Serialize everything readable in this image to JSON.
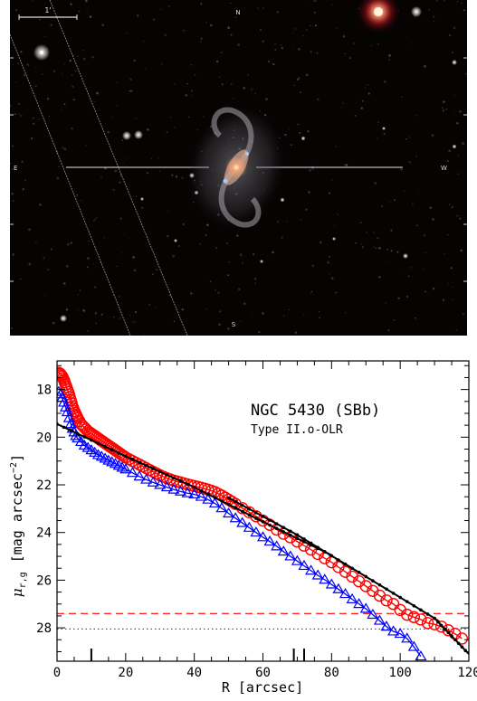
{
  "image": {
    "scale_bar_label": "1'",
    "compass": {
      "north": "N",
      "south": "S",
      "east": "E",
      "west": "W"
    }
  },
  "chart_data": {
    "type": "scatter",
    "title": "NGC 5430 (SBb)",
    "subtitle": "Type II.o-OLR",
    "xlabel": "R [arcsec]",
    "ylabel": "μr,g [mag arcsec−2]",
    "ylabel_parts": {
      "mu": "μ",
      "sub": "r,g",
      "unit": "[mag arcsec",
      "exp": "−2",
      "close": "]"
    },
    "xlim": [
      0,
      120
    ],
    "ylim": [
      29.4,
      16.8
    ],
    "y_inverted": true,
    "xticks": [
      0,
      20,
      40,
      60,
      80,
      100,
      120
    ],
    "yticks": [
      18,
      20,
      22,
      24,
      26,
      28
    ],
    "break_markers_x": [
      10,
      69,
      72
    ],
    "sky_limits": [
      {
        "name": "r",
        "y": 27.4,
        "color": "#ff0000",
        "style": "dashed"
      },
      {
        "name": "g",
        "y": 28.05,
        "color": "#3333ff",
        "style": "dotted"
      }
    ],
    "series": [
      {
        "color": "#ff0000",
        "marker": "circle",
        "x": [
          0.5,
          1,
          1.5,
          2,
          2.5,
          3,
          3.5,
          4,
          4.5,
          5,
          5.5,
          6,
          7,
          8,
          9,
          10,
          11,
          12,
          13,
          14,
          15,
          16,
          17,
          18,
          19,
          20,
          22,
          24,
          26,
          28,
          30,
          32,
          34,
          36,
          38,
          40,
          42,
          44,
          46,
          48,
          50,
          52,
          54,
          56,
          58,
          60,
          62,
          64,
          66,
          68,
          70,
          72,
          74,
          76,
          78,
          80,
          82,
          84,
          86,
          88,
          90,
          92,
          94,
          96,
          98,
          100,
          102,
          104,
          106,
          108,
          110,
          112,
          114,
          116,
          118
        ],
        "y": [
          17.3,
          17.35,
          17.45,
          17.6,
          17.8,
          18.0,
          18.2,
          18.45,
          18.7,
          18.9,
          19.05,
          19.2,
          19.45,
          19.6,
          19.75,
          19.85,
          19.95,
          20.05,
          20.15,
          20.25,
          20.35,
          20.45,
          20.55,
          20.65,
          20.75,
          20.85,
          21.0,
          21.15,
          21.3,
          21.45,
          21.6,
          21.72,
          21.82,
          21.9,
          21.98,
          22.05,
          22.12,
          22.2,
          22.3,
          22.45,
          22.62,
          22.8,
          22.98,
          23.15,
          23.32,
          23.5,
          23.68,
          23.88,
          24.05,
          24.2,
          24.38,
          24.55,
          24.72,
          24.9,
          25.08,
          25.25,
          25.45,
          25.65,
          25.85,
          26.05,
          26.25,
          26.45,
          26.65,
          26.85,
          27.0,
          27.25,
          27.45,
          27.55,
          27.65,
          27.8,
          27.85,
          27.95,
          28.1,
          28.25,
          28.45
        ]
      },
      {
        "color": "#0000ff",
        "marker": "triangle",
        "x": [
          0.5,
          1,
          1.5,
          2,
          2.5,
          3,
          3.5,
          4,
          4.5,
          5,
          5.5,
          6,
          7,
          8,
          9,
          10,
          11,
          12,
          13,
          14,
          15,
          16,
          17,
          18,
          19,
          20,
          22,
          24,
          26,
          28,
          30,
          32,
          34,
          36,
          38,
          40,
          42,
          44,
          46,
          48,
          50,
          52,
          54,
          56,
          58,
          60,
          62,
          64,
          66,
          68,
          70,
          72,
          74,
          76,
          78,
          80,
          82,
          84,
          86,
          88,
          90,
          92,
          94,
          96,
          98,
          100,
          102,
          104,
          106
        ],
        "y": [
          18.1,
          18.2,
          18.35,
          18.55,
          18.75,
          18.95,
          19.2,
          19.45,
          19.65,
          19.8,
          19.95,
          20.05,
          20.2,
          20.35,
          20.45,
          20.55,
          20.65,
          20.75,
          20.82,
          20.9,
          20.98,
          21.05,
          21.12,
          21.2,
          21.28,
          21.35,
          21.5,
          21.65,
          21.78,
          21.9,
          22.0,
          22.1,
          22.2,
          22.28,
          22.35,
          22.4,
          22.5,
          22.62,
          22.78,
          22.98,
          23.2,
          23.4,
          23.6,
          23.8,
          24.0,
          24.2,
          24.38,
          24.58,
          24.8,
          25.0,
          25.2,
          25.4,
          25.6,
          25.8,
          25.98,
          26.18,
          26.38,
          26.58,
          26.8,
          27.0,
          27.2,
          27.45,
          27.7,
          27.95,
          28.15,
          28.25,
          28.45,
          28.8,
          29.2
        ]
      },
      {
        "color": "#000000",
        "marker": "fit-inner",
        "x": [
          0,
          20,
          40,
          60,
          80
        ],
        "y": [
          19.45,
          20.8,
          22.1,
          23.55,
          24.95
        ]
      },
      {
        "color": "#000000",
        "marker": "fit-outer",
        "x": [
          50,
          70,
          90,
          110,
          120
        ],
        "y": [
          22.55,
          24.1,
          25.85,
          27.6,
          29.1
        ]
      }
    ]
  }
}
